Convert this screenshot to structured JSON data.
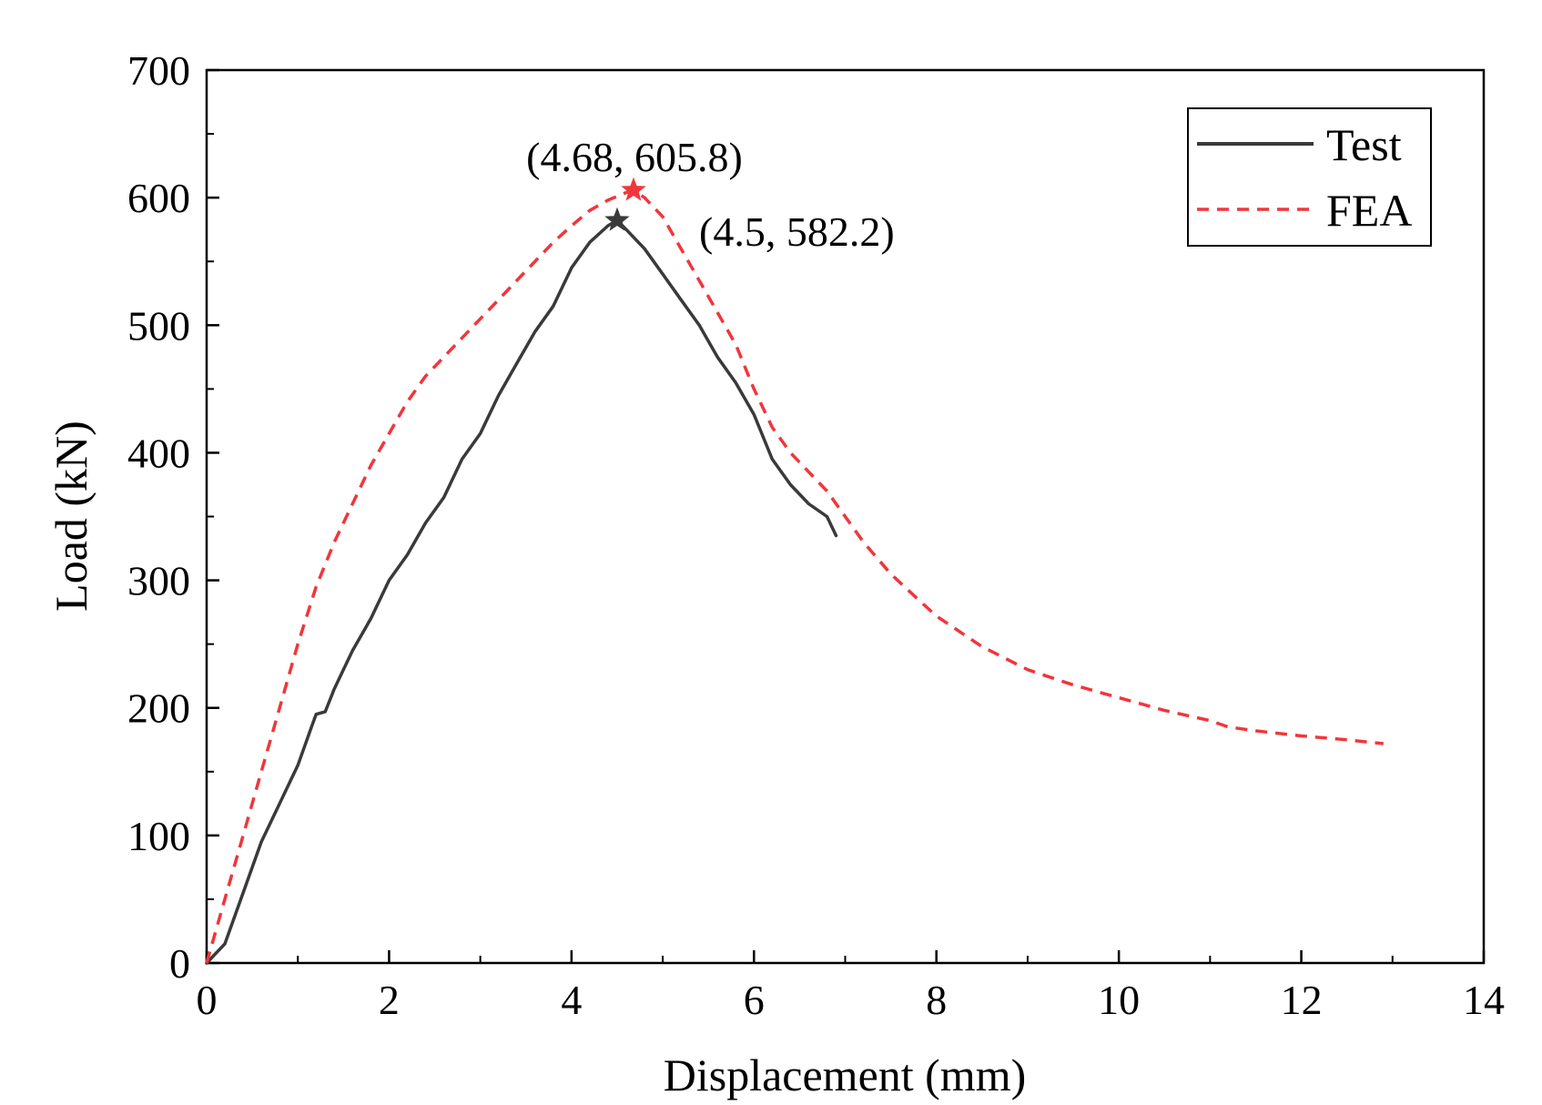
{
  "chart_data": {
    "type": "line",
    "title": "",
    "xlabel": "Displacement (mm)",
    "ylabel": "Load (kN)",
    "xlim": [
      0,
      14
    ],
    "ylim": [
      0,
      700
    ],
    "xticks": [
      0,
      2,
      4,
      6,
      8,
      10,
      12,
      14
    ],
    "yticks": [
      0,
      100,
      200,
      300,
      400,
      500,
      600,
      700
    ],
    "xtick_labels": [
      "0",
      "2",
      "4",
      "6",
      "8",
      "10",
      "12",
      "14"
    ],
    "ytick_labels": [
      "0",
      "100",
      "200",
      "300",
      "400",
      "500",
      "600",
      "700"
    ],
    "grid": false,
    "legend_position": "top-right",
    "series": [
      {
        "name": "Test",
        "color": "#3a3a3a",
        "style": "solid",
        "x": [
          0,
          0.2,
          0.4,
          0.6,
          0.8,
          1.0,
          1.15,
          1.2,
          1.3,
          1.4,
          1.6,
          1.8,
          2.0,
          2.2,
          2.4,
          2.6,
          2.8,
          3.0,
          3.2,
          3.4,
          3.6,
          3.8,
          4.0,
          4.2,
          4.4,
          4.5,
          4.6,
          4.8,
          5.0,
          5.2,
          5.4,
          5.6,
          5.8,
          6.0,
          6.2,
          6.4,
          6.6,
          6.8,
          6.9
        ],
        "y": [
          0,
          15,
          55,
          95,
          125,
          155,
          185,
          195,
          197,
          215,
          245,
          270,
          300,
          320,
          345,
          365,
          395,
          415,
          445,
          470,
          495,
          515,
          545,
          565,
          578,
          582.2,
          575,
          560,
          540,
          520,
          500,
          475,
          455,
          430,
          395,
          375,
          360,
          350,
          335
        ]
      },
      {
        "name": "FEA",
        "color": "#f0363c",
        "style": "dashed",
        "x": [
          0,
          0.2,
          0.4,
          0.6,
          0.8,
          1.0,
          1.2,
          1.4,
          1.6,
          1.8,
          2.0,
          2.2,
          2.4,
          2.6,
          2.8,
          3.0,
          3.2,
          3.4,
          3.6,
          3.8,
          4.0,
          4.2,
          4.4,
          4.6,
          4.68,
          4.8,
          5.0,
          5.2,
          5.4,
          5.6,
          5.8,
          6.0,
          6.2,
          6.4,
          6.6,
          6.8,
          7.0,
          7.2,
          7.5,
          7.8,
          8.0,
          8.5,
          9.0,
          9.5,
          10.0,
          10.5,
          11.0,
          11.2,
          11.5,
          12.0,
          12.5,
          12.9
        ],
        "y": [
          0,
          50,
          100,
          150,
          200,
          250,
          295,
          330,
          360,
          390,
          415,
          440,
          460,
          475,
          490,
          505,
          520,
          535,
          550,
          565,
          578,
          590,
          598,
          604,
          605.8,
          600,
          585,
          560,
          535,
          510,
          485,
          450,
          420,
          400,
          385,
          370,
          350,
          330,
          305,
          285,
          272,
          248,
          230,
          218,
          208,
          198,
          190,
          185,
          182,
          178,
          175,
          172
        ]
      }
    ],
    "annotations": [
      {
        "text": "(4.68, 605.8)",
        "x": 4.68,
        "y": 605.8,
        "series": "FEA"
      },
      {
        "text": "(4.5, 582.2)",
        "x": 4.5,
        "y": 582.2,
        "series": "Test"
      }
    ]
  }
}
